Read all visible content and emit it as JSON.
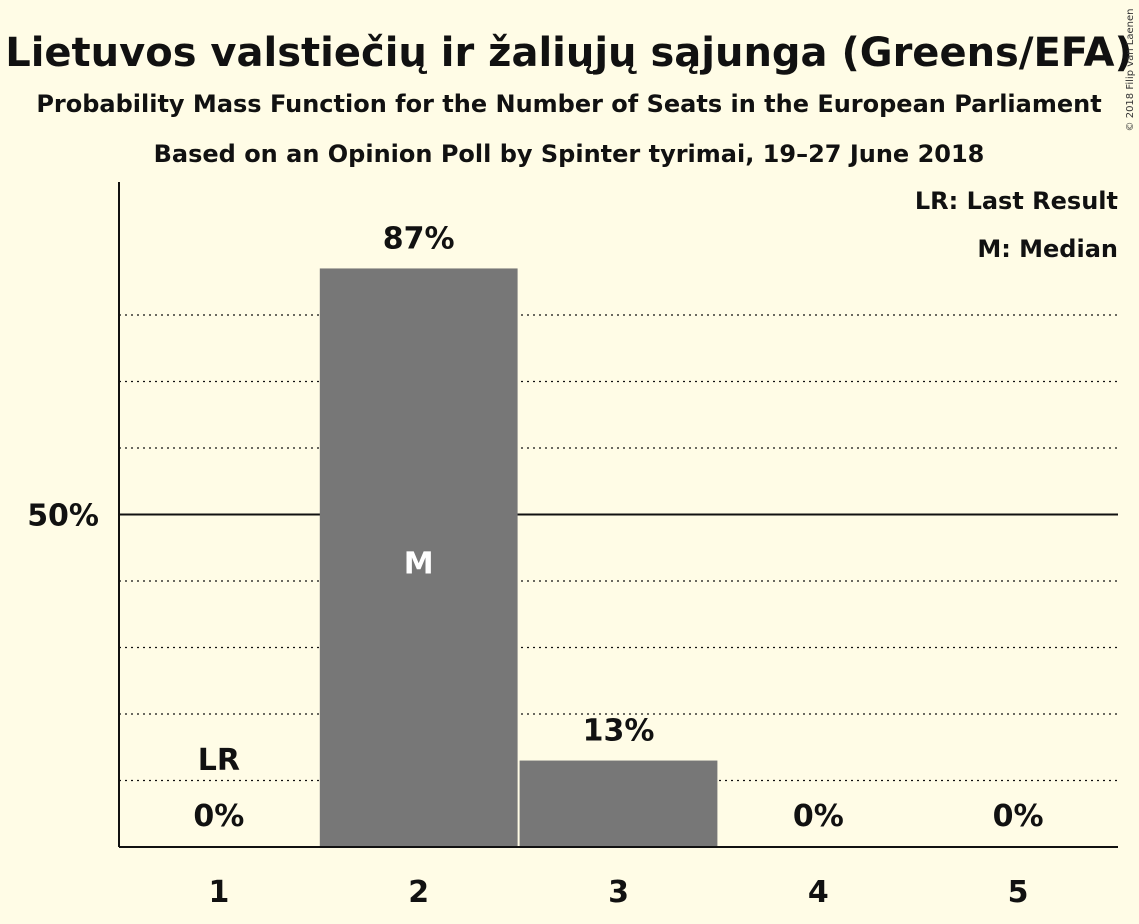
{
  "chart_data": {
    "type": "bar",
    "title": "Lietuvos valstiečių ir žaliųjų sąjunga (Greens/EFA)",
    "subtitle": "Probability Mass Function for the Number of Seats in the European Parliament",
    "subtitle2": "Based on an Opinion Poll by Spinter tyrimai, 19–27 June 2018",
    "categories": [
      "1",
      "2",
      "3",
      "4",
      "5"
    ],
    "values": [
      0,
      87,
      13,
      0,
      0
    ],
    "value_labels": [
      "0%",
      "87%",
      "13%",
      "0%",
      "0%"
    ],
    "ylim": [
      0,
      100
    ],
    "y_tick_label": "50%",
    "y_tick_value": 50,
    "gridlines": [
      10,
      20,
      30,
      40,
      60,
      70,
      80
    ],
    "last_result_category": "1",
    "last_result_marker": "LR",
    "median_category": "2",
    "median_marker": "M",
    "legend": {
      "placement": "top-right",
      "items": [
        "LR: Last Result",
        "M: Median"
      ]
    },
    "bar_color": "#777777",
    "copyright": "© 2018 Filip van Laenen"
  }
}
